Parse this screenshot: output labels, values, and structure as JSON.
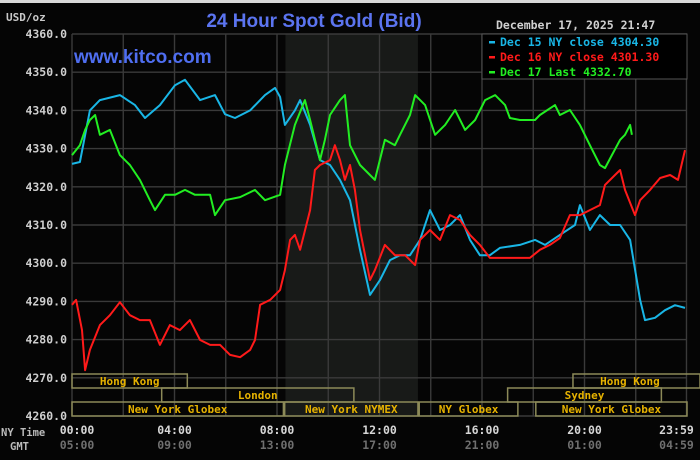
{
  "chart_data": {
    "type": "line",
    "title": "24 Hour Spot Gold (Bid)",
    "watermark": "www.kitco.com",
    "timestamp": "December 17, 2025 21:47",
    "ylabel": "USD/oz",
    "ylim": [
      4260,
      4360
    ],
    "y_ticks": [
      "4360.0",
      "4350.0",
      "4340.0",
      "4330.0",
      "4320.0",
      "4310.0",
      "4300.0",
      "4290.0",
      "4280.0",
      "4270.0",
      "4260.0"
    ],
    "xlim_hours": [
      0,
      24
    ],
    "x_row_labels": {
      "ny": "NY Time",
      "gmt": "GMT"
    },
    "x_ticks": [
      {
        "hour": 0,
        "ny": "00:00",
        "gmt": "05:00"
      },
      {
        "hour": 4,
        "ny": "04:00",
        "gmt": "09:00"
      },
      {
        "hour": 8,
        "ny": "08:00",
        "gmt": "13:00"
      },
      {
        "hour": 12,
        "ny": "12:00",
        "gmt": "17:00"
      },
      {
        "hour": 16,
        "ny": "16:00",
        "gmt": "21:00"
      },
      {
        "hour": 20,
        "ny": "20:00",
        "gmt": "01:00"
      },
      {
        "hour": 23.98,
        "ny": "23:59",
        "gmt": "04:59"
      }
    ],
    "grid": true,
    "legend_position": "top-right",
    "highlight_band_hours": [
      8.33,
      13.5
    ],
    "series": [
      {
        "name": "Dec 15 NY close 4304.30",
        "color": "#19b6e6",
        "points": [
          [
            0,
            4326
          ],
          [
            0.31,
            4326.5
          ],
          [
            0.7,
            4340
          ],
          [
            1.09,
            4342.7
          ],
          [
            1.87,
            4344
          ],
          [
            2.46,
            4341.4
          ],
          [
            2.85,
            4338
          ],
          [
            3.43,
            4341.4
          ],
          [
            4.02,
            4346.6
          ],
          [
            4.41,
            4348
          ],
          [
            5.0,
            4342.7
          ],
          [
            5.58,
            4344
          ],
          [
            5.97,
            4339
          ],
          [
            6.36,
            4338
          ],
          [
            6.95,
            4340
          ],
          [
            7.53,
            4344
          ],
          [
            7.92,
            4345.9
          ],
          [
            8.12,
            4343.5
          ],
          [
            8.31,
            4336.2
          ],
          [
            8.7,
            4340
          ],
          [
            8.9,
            4342.7
          ],
          [
            9.29,
            4336.2
          ],
          [
            9.68,
            4327
          ],
          [
            10.07,
            4325.7
          ],
          [
            10.46,
            4321.8
          ],
          [
            10.85,
            4316.5
          ],
          [
            11.24,
            4303.5
          ],
          [
            11.63,
            4291.7
          ],
          [
            12.02,
            4295.6
          ],
          [
            12.41,
            4300.8
          ],
          [
            12.8,
            4302.1
          ],
          [
            13.19,
            4302.1
          ],
          [
            13.58,
            4306.1
          ],
          [
            13.97,
            4313.9
          ],
          [
            14.36,
            4308.7
          ],
          [
            14.75,
            4310
          ],
          [
            15.14,
            4312.6
          ],
          [
            15.53,
            4306.1
          ],
          [
            15.92,
            4302.1
          ],
          [
            16.31,
            4302.1
          ],
          [
            16.7,
            4304
          ],
          [
            17.48,
            4304.8
          ],
          [
            18.07,
            4306.1
          ],
          [
            18.46,
            4304.8
          ],
          [
            19.04,
            4307.4
          ],
          [
            19.63,
            4310
          ],
          [
            19.82,
            4315.2
          ],
          [
            20.21,
            4308.7
          ],
          [
            20.6,
            4312.6
          ],
          [
            21.0,
            4310
          ],
          [
            21.39,
            4310
          ],
          [
            21.78,
            4306.1
          ],
          [
            22.17,
            4290.4
          ],
          [
            22.36,
            4285.1
          ],
          [
            22.75,
            4285.7
          ],
          [
            23.14,
            4287.7
          ],
          [
            23.53,
            4289
          ],
          [
            23.92,
            4288.3
          ]
        ]
      },
      {
        "name": "Dec 16 NY close 4301.30",
        "color": "#ff1a1a",
        "points": [
          [
            0,
            4289.1
          ],
          [
            0.16,
            4290.4
          ],
          [
            0.39,
            4282.5
          ],
          [
            0.51,
            4272
          ],
          [
            0.7,
            4277.3
          ],
          [
            1.09,
            4283.8
          ],
          [
            1.48,
            4286.4
          ],
          [
            1.87,
            4289.8
          ],
          [
            2.26,
            4286.4
          ],
          [
            2.65,
            4285.1
          ],
          [
            3.04,
            4285.1
          ],
          [
            3.43,
            4278.6
          ],
          [
            3.82,
            4283.8
          ],
          [
            4.21,
            4282.5
          ],
          [
            4.6,
            4285.1
          ],
          [
            5.0,
            4279.9
          ],
          [
            5.39,
            4278.6
          ],
          [
            5.78,
            4278.6
          ],
          [
            6.17,
            4276
          ],
          [
            6.56,
            4275.4
          ],
          [
            6.95,
            4277.3
          ],
          [
            7.14,
            4279.9
          ],
          [
            7.34,
            4289.1
          ],
          [
            7.73,
            4290.4
          ],
          [
            8.12,
            4293
          ],
          [
            8.31,
            4298.2
          ],
          [
            8.51,
            4306.1
          ],
          [
            8.7,
            4307.4
          ],
          [
            8.9,
            4303.5
          ],
          [
            9.29,
            4313.9
          ],
          [
            9.48,
            4324.4
          ],
          [
            9.68,
            4325.7
          ],
          [
            10.07,
            4327
          ],
          [
            10.26,
            4330.9
          ],
          [
            10.46,
            4327
          ],
          [
            10.65,
            4321.8
          ],
          [
            10.85,
            4325.7
          ],
          [
            11.04,
            4319.2
          ],
          [
            11.24,
            4308.7
          ],
          [
            11.63,
            4295.6
          ],
          [
            11.82,
            4298.2
          ],
          [
            12.21,
            4304.8
          ],
          [
            12.6,
            4302.1
          ],
          [
            13.0,
            4302.1
          ],
          [
            13.39,
            4299.5
          ],
          [
            13.58,
            4306.1
          ],
          [
            13.97,
            4308.7
          ],
          [
            14.36,
            4306.1
          ],
          [
            14.75,
            4312.6
          ],
          [
            15.14,
            4311.3
          ],
          [
            15.53,
            4307.4
          ],
          [
            15.92,
            4304.8
          ],
          [
            16.31,
            4301.4
          ],
          [
            17.09,
            4301.4
          ],
          [
            17.87,
            4301.4
          ],
          [
            18.26,
            4303.5
          ],
          [
            18.65,
            4304.8
          ],
          [
            19.04,
            4306.6
          ],
          [
            19.43,
            4312.6
          ],
          [
            19.82,
            4312.6
          ],
          [
            20.21,
            4313.9
          ],
          [
            20.6,
            4315.2
          ],
          [
            20.8,
            4320.5
          ],
          [
            21.19,
            4323.1
          ],
          [
            21.39,
            4324.4
          ],
          [
            21.58,
            4319.2
          ],
          [
            21.97,
            4312.6
          ],
          [
            22.17,
            4316.5
          ],
          [
            22.56,
            4319.2
          ],
          [
            22.95,
            4322.3
          ],
          [
            23.34,
            4323.1
          ],
          [
            23.65,
            4321.8
          ],
          [
            23.92,
            4329.6
          ]
        ]
      },
      {
        "name": "Dec 17 Last 4332.70",
        "color": "#22ee22",
        "points": [
          [
            0,
            4328.3
          ],
          [
            0.31,
            4330.9
          ],
          [
            0.51,
            4334.9
          ],
          [
            0.7,
            4337.5
          ],
          [
            0.9,
            4338.8
          ],
          [
            1.09,
            4333.6
          ],
          [
            1.48,
            4334.9
          ],
          [
            1.87,
            4328.3
          ],
          [
            2.26,
            4325.7
          ],
          [
            2.65,
            4321.8
          ],
          [
            3.04,
            4316.5
          ],
          [
            3.24,
            4313.9
          ],
          [
            3.63,
            4317.9
          ],
          [
            4.02,
            4317.9
          ],
          [
            4.41,
            4319.2
          ],
          [
            4.8,
            4317.9
          ],
          [
            5.39,
            4317.9
          ],
          [
            5.58,
            4312.6
          ],
          [
            5.97,
            4316.5
          ],
          [
            6.56,
            4317.3
          ],
          [
            7.14,
            4319.2
          ],
          [
            7.53,
            4316.5
          ],
          [
            8.12,
            4317.9
          ],
          [
            8.31,
            4325.7
          ],
          [
            8.7,
            4336.2
          ],
          [
            9.09,
            4342.7
          ],
          [
            9.29,
            4337.5
          ],
          [
            9.68,
            4327
          ],
          [
            9.87,
            4332.3
          ],
          [
            10.07,
            4338.8
          ],
          [
            10.46,
            4342.7
          ],
          [
            10.65,
            4344
          ],
          [
            10.85,
            4330.9
          ],
          [
            11.24,
            4325.7
          ],
          [
            11.63,
            4323.1
          ],
          [
            11.82,
            4321.8
          ],
          [
            12.21,
            4332.3
          ],
          [
            12.6,
            4330.9
          ],
          [
            12.8,
            4333.6
          ],
          [
            13.19,
            4338.8
          ],
          [
            13.39,
            4344
          ],
          [
            13.78,
            4341.4
          ],
          [
            14.17,
            4333.6
          ],
          [
            14.56,
            4336.2
          ],
          [
            14.95,
            4340.1
          ],
          [
            15.34,
            4334.9
          ],
          [
            15.73,
            4337.5
          ],
          [
            16.12,
            4342.7
          ],
          [
            16.51,
            4344
          ],
          [
            16.9,
            4341.4
          ],
          [
            17.09,
            4338
          ],
          [
            17.48,
            4337.5
          ],
          [
            18.07,
            4337.5
          ],
          [
            18.26,
            4338.8
          ],
          [
            18.85,
            4341.4
          ],
          [
            19.04,
            4338.8
          ],
          [
            19.43,
            4340.1
          ],
          [
            19.82,
            4336.2
          ],
          [
            20.21,
            4330.9
          ],
          [
            20.6,
            4325.7
          ],
          [
            20.8,
            4324.9
          ],
          [
            21.07,
            4328.3
          ],
          [
            21.39,
            4332.3
          ],
          [
            21.58,
            4333.6
          ],
          [
            21.78,
            4336.2
          ],
          [
            21.85,
            4333.6
          ]
        ]
      }
    ],
    "sessions": [
      {
        "label": "Hong Kong",
        "row": 0,
        "start": 0,
        "end": 4.5
      },
      {
        "label": "Hong Kong",
        "row": 0,
        "start": 19.55,
        "end": 24.6
      },
      {
        "label": "London",
        "row": 1,
        "start": 3.5,
        "end": 11.0
      },
      {
        "label": "Sydney",
        "row": 1,
        "start": 17.0,
        "end": 23.0
      },
      {
        "label": "New York Globex",
        "row": 2,
        "start": 0,
        "end": 8.25
      },
      {
        "label": "New York NYMEX",
        "row": 2,
        "start": 8.3,
        "end": 13.5
      },
      {
        "label": "NY Globex",
        "row": 2,
        "start": 13.55,
        "end": 17.4
      },
      {
        "label": "New York Globex",
        "row": 2,
        "start": 18.1,
        "end": 24
      }
    ]
  }
}
